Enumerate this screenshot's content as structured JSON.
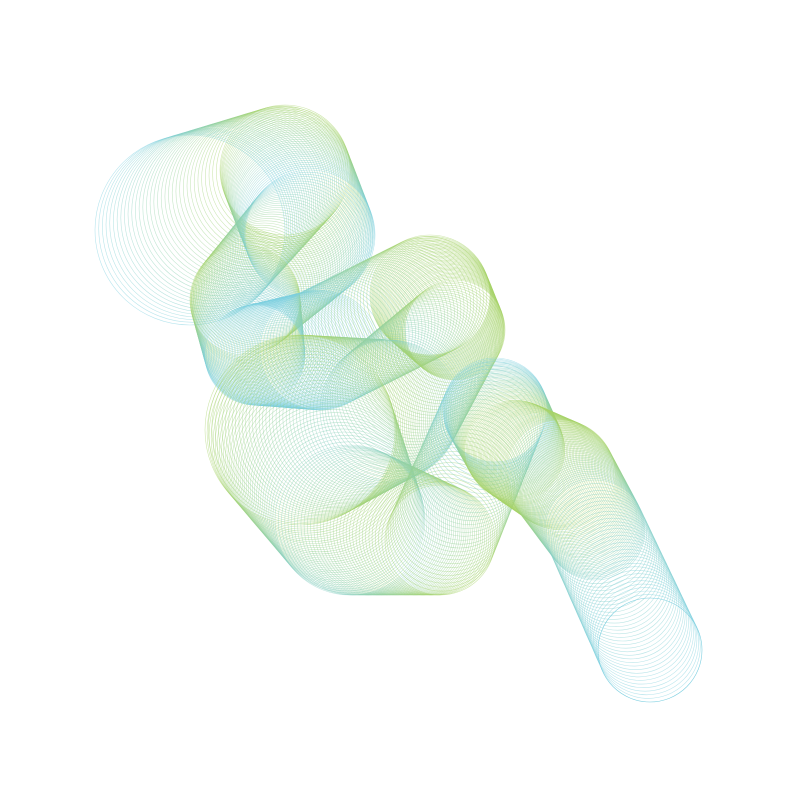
{
  "artwork": {
    "description_colors": {
      "background": "#ffffff",
      "cyan": "#7ccfe0",
      "lime": "#a8d46a",
      "teal": "#88d0c4"
    },
    "stroke_opacity": 0.55
  }
}
